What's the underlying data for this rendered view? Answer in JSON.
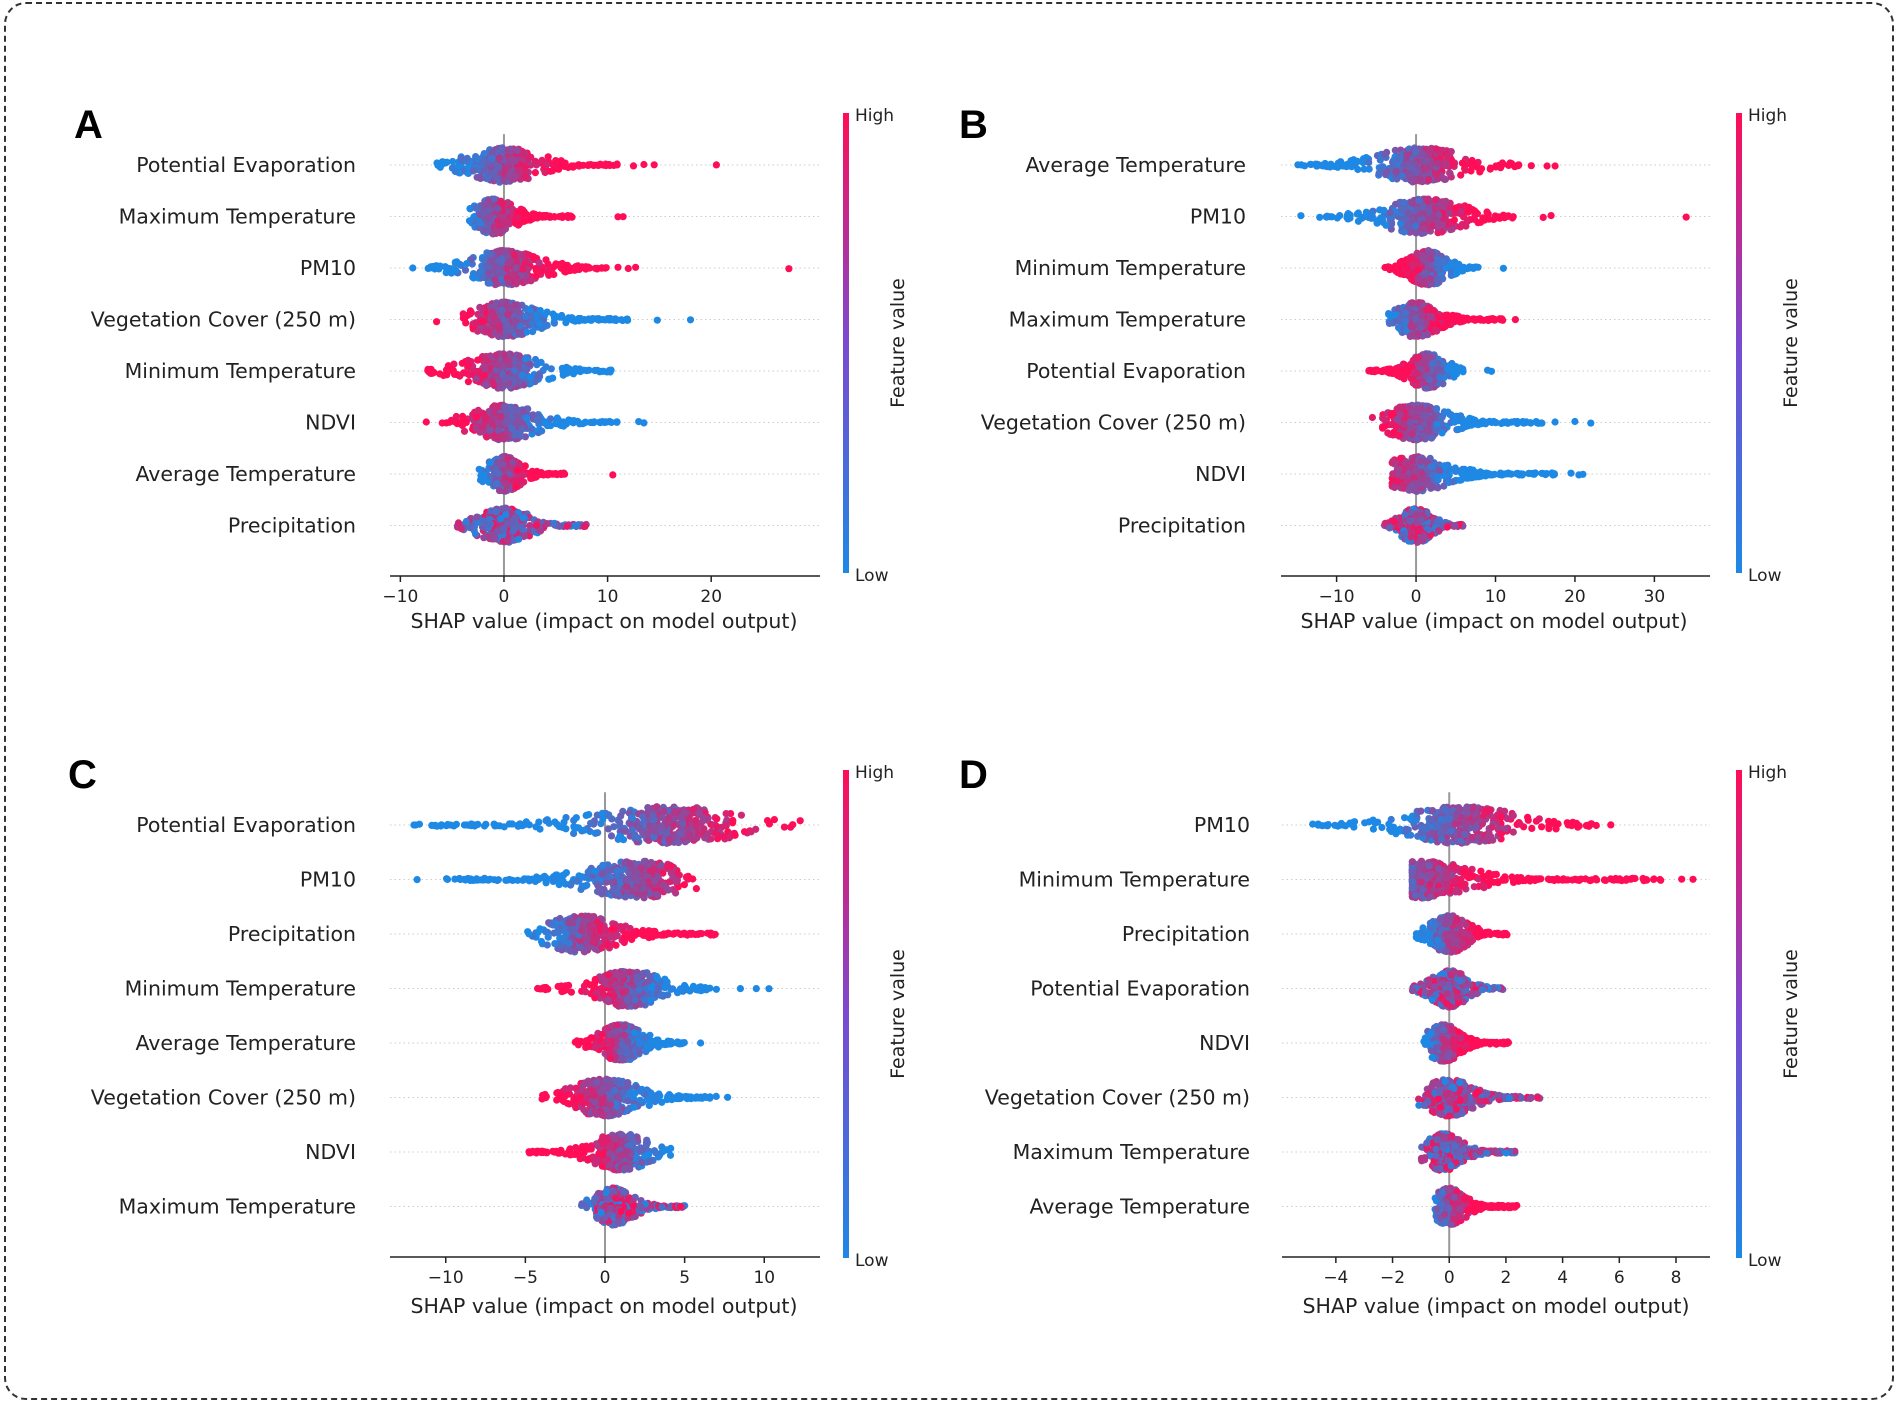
{
  "colorbar": {
    "high": "High",
    "low": "Low",
    "title": "Feature value",
    "color_low": "#1e88e5",
    "color_high": "#ff0d57"
  },
  "axis_color": "#222222",
  "chart_data": [
    {
      "panel": "A",
      "type": "scatter",
      "subtype": "shap-beeswarm",
      "xlabel": "SHAP value (impact on model output)",
      "xlim": [
        -11,
        30.5
      ],
      "xticks": [
        -10,
        0,
        10,
        20
      ],
      "features": [
        {
          "name": "Potential Evaporation",
          "min": -7.2,
          "max": 20.5,
          "core": [
            -6.5,
            11
          ],
          "peak": 0,
          "low_side": "left",
          "outliers": [
            12.5,
            13.5,
            14.5,
            20.5
          ]
        },
        {
          "name": "Maximum Temperature",
          "min": -5,
          "max": 11.5,
          "core": [
            -3.5,
            7
          ],
          "peak": -1,
          "low_side": "left",
          "outliers": [
            11,
            11.5
          ]
        },
        {
          "name": "PM10",
          "min": -8.8,
          "max": 27.5,
          "core": [
            -7.5,
            10
          ],
          "peak": 0,
          "low_side": "left",
          "outliers": [
            -8.8,
            11,
            12,
            12.7,
            27.5
          ]
        },
        {
          "name": "Vegetation Cover (250 m)",
          "min": -6.5,
          "max": 18,
          "core": [
            -4.5,
            12
          ],
          "peak": 0,
          "low_side": "right",
          "outliers": [
            -6.5,
            14.8,
            18
          ]
        },
        {
          "name": "Minimum Temperature",
          "min": -7.5,
          "max": 10.5,
          "core": [
            -7.5,
            10.5
          ],
          "peak": 0,
          "low_side": "right",
          "outliers": []
        },
        {
          "name": "NDVI",
          "min": -7.5,
          "max": 13.5,
          "core": [
            -6,
            11
          ],
          "peak": 0,
          "low_side": "right",
          "outliers": [
            -7.5,
            13,
            13.5
          ]
        },
        {
          "name": "Average Temperature",
          "min": -2.5,
          "max": 10.5,
          "core": [
            -2.5,
            6
          ],
          "peak": 0,
          "low_side": "left",
          "outliers": [
            10.5
          ]
        },
        {
          "name": "Precipitation",
          "min": -4.5,
          "max": 8.2,
          "core": [
            -4.5,
            8
          ],
          "peak": 0,
          "low_side": "mixed",
          "outliers": []
        }
      ]
    },
    {
      "panel": "B",
      "type": "scatter",
      "subtype": "shap-beeswarm",
      "xlabel": "SHAP value (impact on model output)",
      "xlim": [
        -17,
        37
      ],
      "xticks": [
        -10,
        0,
        10,
        20,
        30
      ],
      "features": [
        {
          "name": "Average Temperature",
          "min": -15,
          "max": 18,
          "core": [
            -15,
            13
          ],
          "peak": 0.5,
          "low_side": "left",
          "outliers": [
            14.5,
            16.5,
            17.5
          ]
        },
        {
          "name": "PM10",
          "min": -14.5,
          "max": 34,
          "core": [
            -13,
            13
          ],
          "peak": 1,
          "low_side": "left",
          "outliers": [
            -14.5,
            16,
            17,
            34
          ]
        },
        {
          "name": "Minimum Temperature",
          "min": -4,
          "max": 11,
          "core": [
            -4,
            8
          ],
          "peak": 1.5,
          "low_side": "right",
          "outliers": [
            11
          ]
        },
        {
          "name": "Maximum Temperature",
          "min": -3.5,
          "max": 12.5,
          "core": [
            -3.5,
            11
          ],
          "peak": 0,
          "low_side": "left",
          "outliers": [
            12.5
          ]
        },
        {
          "name": "Potential Evaporation",
          "min": -6.5,
          "max": 9.5,
          "core": [
            -6,
            6
          ],
          "peak": 1.5,
          "low_side": "right",
          "outliers": [
            9,
            9.5
          ]
        },
        {
          "name": "Vegetation Cover (250 m)",
          "min": -5.5,
          "max": 22,
          "core": [
            -4.5,
            16
          ],
          "peak": 0,
          "low_side": "right",
          "outliers": [
            -5.5,
            17.5,
            20,
            22
          ]
        },
        {
          "name": "NDVI",
          "min": -3,
          "max": 21,
          "core": [
            -3,
            18
          ],
          "peak": 0,
          "low_side": "right",
          "outliers": [
            19.5,
            20.5,
            21
          ]
        },
        {
          "name": "Precipitation",
          "min": -4,
          "max": 6.2,
          "core": [
            -4,
            6
          ],
          "peak": 0,
          "low_side": "mixed",
          "outliers": []
        }
      ]
    },
    {
      "panel": "C",
      "type": "scatter",
      "subtype": "shap-beeswarm",
      "xlabel": "SHAP value (impact on model output)",
      "xlim": [
        -13.5,
        13.5
      ],
      "xticks": [
        -10,
        -5,
        0,
        5,
        10
      ],
      "features": [
        {
          "name": "Potential Evaporation",
          "min": -12,
          "max": 12.5,
          "core": [
            -12,
            12.5
          ],
          "peak": 4,
          "low_side": "left",
          "outliers": []
        },
        {
          "name": "PM10",
          "min": -11.8,
          "max": 6,
          "core": [
            -10,
            6
          ],
          "peak": 2,
          "low_side": "left",
          "outliers": [
            -11.8
          ]
        },
        {
          "name": "Precipitation",
          "min": -5.5,
          "max": 7.2,
          "core": [
            -5,
            7
          ],
          "peak": -1.5,
          "low_side": "left",
          "outliers": []
        },
        {
          "name": "Minimum Temperature",
          "min": -4.3,
          "max": 10.3,
          "core": [
            -4.3,
            7
          ],
          "peak": 1.5,
          "low_side": "right",
          "outliers": [
            8.5,
            9.5,
            10.3
          ]
        },
        {
          "name": "Average Temperature",
          "min": -2,
          "max": 6,
          "core": [
            -2,
            5
          ],
          "peak": 1,
          "low_side": "right",
          "outliers": [
            6
          ]
        },
        {
          "name": "Vegetation Cover (250 m)",
          "min": -4,
          "max": 7.7,
          "core": [
            -4,
            7
          ],
          "peak": 0,
          "low_side": "right",
          "outliers": [
            7.7
          ]
        },
        {
          "name": "NDVI",
          "min": -4.8,
          "max": 4.5,
          "core": [
            -4.8,
            4.3
          ],
          "peak": 1,
          "low_side": "right",
          "outliers": []
        },
        {
          "name": "Maximum Temperature",
          "min": -1.5,
          "max": 5,
          "core": [
            -1.5,
            5
          ],
          "peak": 0.5,
          "low_side": "mixed",
          "outliers": []
        }
      ]
    },
    {
      "panel": "D",
      "type": "scatter",
      "subtype": "shap-beeswarm",
      "xlabel": "SHAP value (impact on model output)",
      "xlim": [
        -5.9,
        9.2
      ],
      "xticks": [
        -4,
        -2,
        0,
        2,
        4,
        6,
        8
      ],
      "features": [
        {
          "name": "PM10",
          "min": -5.2,
          "max": 5.7,
          "core": [
            -5,
            5.2
          ],
          "peak": 0.4,
          "low_side": "left",
          "outliers": [
            5.7
          ]
        },
        {
          "name": "Minimum Temperature",
          "min": -1.3,
          "max": 8.6,
          "core": [
            -1.3,
            7.5
          ],
          "peak": -1,
          "low_side": "left",
          "outliers": [
            8.2,
            8.6
          ]
        },
        {
          "name": "Precipitation",
          "min": -1.3,
          "max": 2.1,
          "core": [
            -1.3,
            2.1
          ],
          "peak": 0,
          "low_side": "left",
          "outliers": []
        },
        {
          "name": "Potential Evaporation",
          "min": -1.3,
          "max": 1.9,
          "core": [
            -1.3,
            1.9
          ],
          "peak": 0,
          "low_side": "mixed",
          "outliers": []
        },
        {
          "name": "NDVI",
          "min": -0.9,
          "max": 2.1,
          "core": [
            -0.9,
            2.1
          ],
          "peak": -0.2,
          "low_side": "left",
          "outliers": []
        },
        {
          "name": "Vegetation Cover (250 m)",
          "min": -1.1,
          "max": 3.2,
          "core": [
            -1.1,
            3.2
          ],
          "peak": 0,
          "low_side": "mixed",
          "outliers": []
        },
        {
          "name": "Maximum Temperature",
          "min": -1,
          "max": 2.4,
          "core": [
            -1,
            2.4
          ],
          "peak": -0.2,
          "low_side": "mixed",
          "outliers": []
        },
        {
          "name": "Average Temperature",
          "min": -0.5,
          "max": 2.4,
          "core": [
            -0.5,
            2.4
          ],
          "peak": 0,
          "low_side": "left",
          "outliers": []
        }
      ]
    }
  ]
}
